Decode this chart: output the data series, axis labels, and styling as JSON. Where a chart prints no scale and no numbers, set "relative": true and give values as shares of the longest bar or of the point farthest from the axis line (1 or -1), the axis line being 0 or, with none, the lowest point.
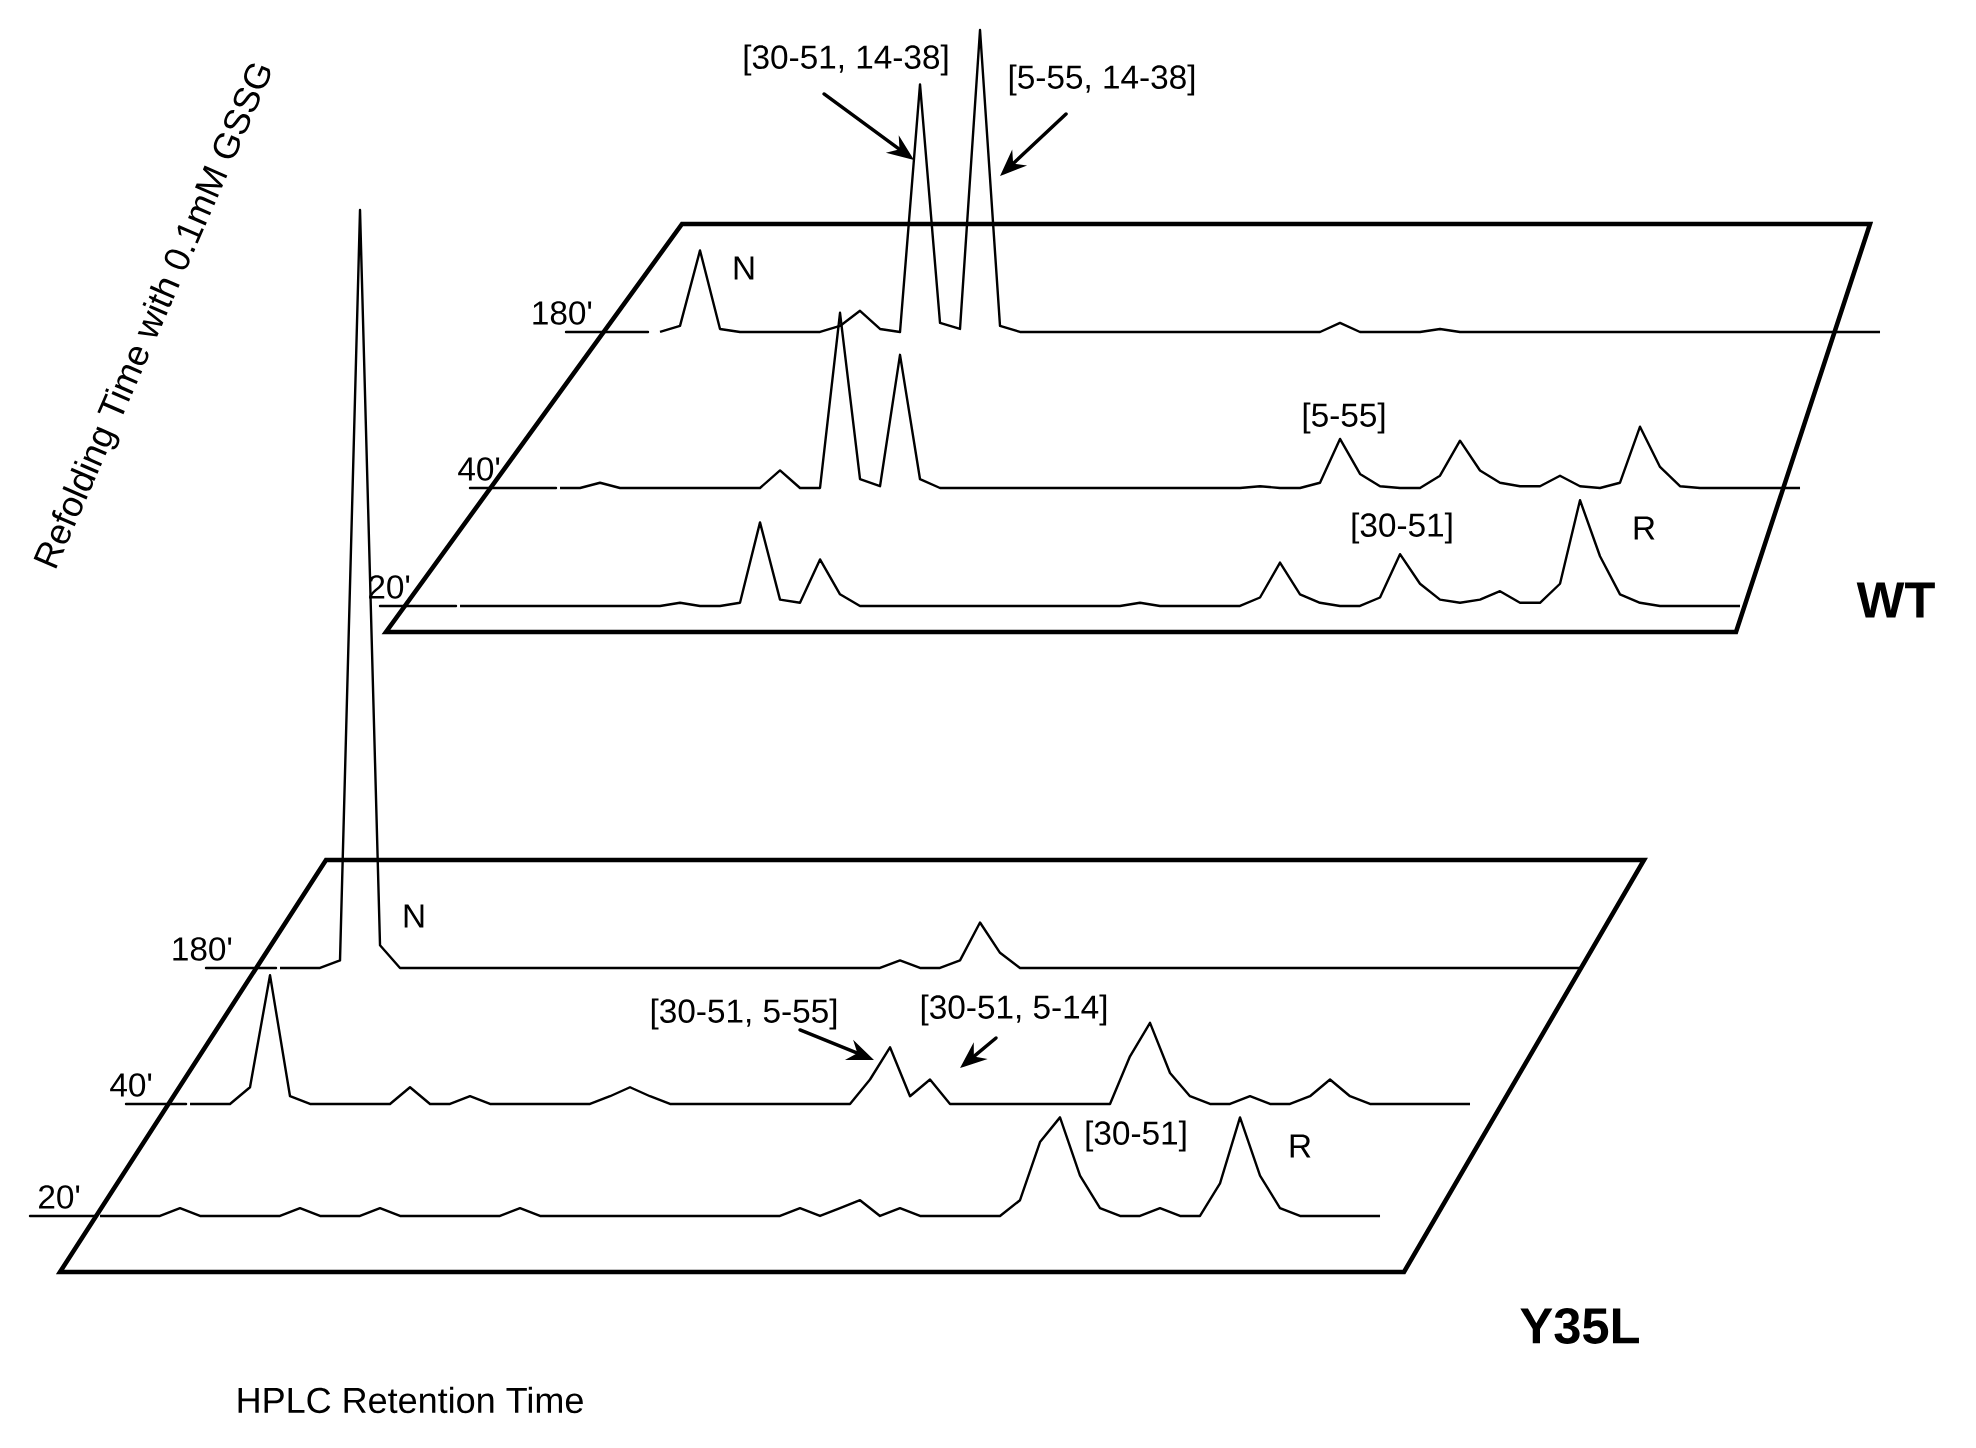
{
  "chart_data": [
    {
      "type": "line",
      "relative": true,
      "ylabel": "Refolding Time with 0.1mM GSSG",
      "categories": [
        null,
        null,
        null,
        null,
        null,
        null,
        null,
        null,
        null,
        null,
        null,
        null,
        null,
        null,
        null,
        null,
        null,
        null,
        null,
        null,
        null,
        null,
        null,
        null,
        null,
        null,
        null,
        null,
        null,
        null,
        null,
        null,
        null,
        null,
        null,
        null,
        null,
        null,
        null,
        null,
        null,
        null,
        null,
        null,
        null,
        null,
        null,
        null,
        null,
        null,
        null,
        null,
        null,
        null,
        null,
        null,
        null,
        null,
        null,
        null,
        null,
        null
      ],
      "series": [
        {
          "name": "180'",
          "color": "#000000",
          "values": [
            0,
            0.02,
            0.27,
            0.01,
            0,
            0,
            0,
            0,
            0,
            0.02,
            0.07,
            0.01,
            0,
            0.82,
            0.03,
            0.01,
            1,
            0.02,
            0,
            0,
            0,
            0,
            0,
            0,
            0,
            0,
            0,
            0,
            0,
            0,
            0,
            0,
            0,
            0,
            0.03,
            0,
            0,
            0,
            0,
            0.01,
            0,
            0,
            0,
            0,
            0,
            0,
            0,
            0,
            0,
            0,
            0,
            0,
            0,
            0,
            0,
            0,
            0,
            0,
            0,
            0,
            0,
            0
          ]
        }
      ],
      "annotations": [
        "[30-51, 14-38]",
        "[5-55, 14-38]",
        "N"
      ]
    },
    {
      "type": "line",
      "relative": true,
      "categories": [
        null,
        null,
        null,
        null,
        null,
        null,
        null,
        null,
        null,
        null,
        null,
        null,
        null,
        null,
        null,
        null,
        null,
        null,
        null,
        null,
        null,
        null,
        null,
        null,
        null,
        null,
        null,
        null,
        null,
        null,
        null,
        null,
        null,
        null,
        null,
        null,
        null,
        null,
        null,
        null,
        null,
        null,
        null,
        null,
        null,
        null,
        null,
        null,
        null,
        null,
        null,
        null,
        null,
        null,
        null,
        null,
        null,
        null,
        null,
        null,
        null,
        null,
        null
      ],
      "series": [
        {
          "name": "40'",
          "color": "#000000",
          "values": [
            0,
            0,
            0.03,
            0,
            0,
            0,
            0,
            0,
            0,
            0,
            0,
            0.1,
            0,
            0,
            1,
            0.05,
            0.01,
            0.76,
            0.05,
            0,
            0,
            0,
            0,
            0,
            0,
            0,
            0,
            0,
            0,
            0,
            0,
            0,
            0,
            0,
            0,
            0.01,
            0,
            0,
            0.03,
            0.28,
            0.08,
            0.01,
            0,
            0,
            0.07,
            0.27,
            0.1,
            0.03,
            0.01,
            0.01,
            0.07,
            0.01,
            0,
            0.03,
            0.35,
            0.12,
            0.01,
            0,
            0,
            0,
            0,
            0,
            0
          ]
        }
      ],
      "annotations": [
        "[5-55]"
      ]
    },
    {
      "type": "line",
      "relative": true,
      "categories": [
        null,
        null,
        null,
        null,
        null,
        null,
        null,
        null,
        null,
        null,
        null,
        null,
        null,
        null,
        null,
        null,
        null,
        null,
        null,
        null,
        null,
        null,
        null,
        null,
        null,
        null,
        null,
        null,
        null,
        null,
        null,
        null,
        null,
        null,
        null,
        null,
        null,
        null,
        null,
        null,
        null,
        null,
        null,
        null,
        null,
        null,
        null,
        null,
        null,
        null,
        null,
        null,
        null,
        null,
        null,
        null,
        null,
        null,
        null,
        null,
        null,
        null,
        null,
        null,
        null
      ],
      "series": [
        {
          "name": "20'",
          "color": "#000000",
          "values": [
            0,
            0,
            0,
            0,
            0,
            0,
            0,
            0,
            0,
            0,
            0,
            0.03,
            0,
            0,
            0.03,
            0.79,
            0.06,
            0.03,
            0.44,
            0.11,
            0,
            0,
            0,
            0,
            0,
            0,
            0,
            0,
            0,
            0,
            0,
            0,
            0,
            0,
            0.03,
            0,
            0,
            0,
            0,
            0,
            0.08,
            0.41,
            0.11,
            0.03,
            0,
            0,
            0.08,
            0.49,
            0.21,
            0.06,
            0.03,
            0.06,
            0.14,
            0.03,
            0.03,
            0.21,
            1,
            0.47,
            0.11,
            0.03,
            0,
            0,
            0,
            0,
            0
          ]
        }
      ],
      "annotations": [
        "[30-51]",
        "R",
        "WT"
      ]
    },
    {
      "type": "line",
      "relative": true,
      "categories": [
        null,
        null,
        null,
        null,
        null,
        null,
        null,
        null,
        null,
        null,
        null,
        null,
        null,
        null,
        null,
        null,
        null,
        null,
        null,
        null,
        null,
        null,
        null,
        null,
        null,
        null,
        null,
        null,
        null,
        null,
        null,
        null,
        null,
        null,
        null,
        null,
        null,
        null,
        null,
        null,
        null,
        null,
        null,
        null,
        null,
        null,
        null,
        null,
        null,
        null,
        null,
        null,
        null,
        null,
        null,
        null,
        null,
        null,
        null,
        null,
        null,
        null,
        null,
        null,
        null,
        null
      ],
      "series": [
        {
          "name": "180'",
          "color": "#000000",
          "values": [
            0,
            0,
            0,
            0.01,
            1,
            0.03,
            0,
            0,
            0,
            0,
            0,
            0,
            0,
            0,
            0,
            0,
            0,
            0,
            0,
            0,
            0,
            0,
            0,
            0,
            0,
            0,
            0,
            0,
            0,
            0,
            0,
            0.01,
            0,
            0,
            0.01,
            0.06,
            0.02,
            0,
            0,
            0,
            0,
            0,
            0,
            0,
            0,
            0,
            0,
            0,
            0,
            0,
            0,
            0,
            0,
            0,
            0,
            0,
            0,
            0,
            0,
            0,
            0,
            0,
            0,
            0,
            0,
            0
          ]
        }
      ],
      "annotations": [
        "N"
      ]
    },
    {
      "type": "line",
      "relative": true,
      "categories": [
        null,
        null,
        null,
        null,
        null,
        null,
        null,
        null,
        null,
        null,
        null,
        null,
        null,
        null,
        null,
        null,
        null,
        null,
        null,
        null,
        null,
        null,
        null,
        null,
        null,
        null,
        null,
        null,
        null,
        null,
        null,
        null,
        null,
        null,
        null,
        null,
        null,
        null,
        null,
        null,
        null,
        null,
        null,
        null,
        null,
        null,
        null,
        null,
        null,
        null,
        null,
        null,
        null,
        null,
        null,
        null,
        null,
        null,
        null,
        null,
        null,
        null,
        null,
        null,
        null
      ],
      "series": [
        {
          "name": "40'",
          "color": "#000000",
          "values": [
            0,
            0,
            0,
            0.13,
            1,
            0.06,
            0,
            0,
            0,
            0,
            0,
            0.13,
            0,
            0,
            0.06,
            0,
            0,
            0,
            0,
            0,
            0,
            0.06,
            0.13,
            0.06,
            0,
            0,
            0,
            0,
            0,
            0,
            0,
            0,
            0,
            0,
            0.19,
            0.44,
            0.06,
            0.19,
            0,
            0,
            0,
            0,
            0,
            0,
            0,
            0,
            0,
            0.37,
            0.63,
            0.24,
            0.06,
            0,
            0,
            0.06,
            0,
            0,
            0.06,
            0.19,
            0.06,
            0,
            0,
            0,
            0,
            0,
            0
          ]
        }
      ],
      "annotations": [
        "[30-51, 5-55]",
        "[30-51, 5-14]"
      ]
    },
    {
      "type": "line",
      "relative": true,
      "xlabel": "HPLC Retention Time",
      "categories": [
        null,
        null,
        null,
        null,
        null,
        null,
        null,
        null,
        null,
        null,
        null,
        null,
        null,
        null,
        null,
        null,
        null,
        null,
        null,
        null,
        null,
        null,
        null,
        null,
        null,
        null,
        null,
        null,
        null,
        null,
        null,
        null,
        null,
        null,
        null,
        null,
        null,
        null,
        null,
        null,
        null,
        null,
        null,
        null,
        null,
        null,
        null,
        null,
        null,
        null,
        null,
        null,
        null,
        null,
        null,
        null,
        null,
        null,
        null,
        null,
        null,
        null,
        null,
        null,
        null
      ],
      "series": [
        {
          "name": "20'",
          "color": "#000000",
          "values": [
            0,
            0,
            0,
            0,
            0.08,
            0,
            0,
            0,
            0,
            0,
            0.08,
            0,
            0,
            0,
            0.08,
            0,
            0,
            0,
            0,
            0,
            0,
            0.08,
            0,
            0,
            0,
            0,
            0,
            0,
            0,
            0,
            0,
            0,
            0,
            0,
            0,
            0.08,
            0,
            0.08,
            0.16,
            0,
            0.08,
            0,
            0,
            0,
            0,
            0,
            0.16,
            0.75,
            1,
            0.41,
            0.08,
            0,
            0,
            0.08,
            0,
            0,
            0.33,
            1,
            0.41,
            0.08,
            0,
            0,
            0,
            0,
            0
          ]
        }
      ],
      "annotations": [
        "[30-51]",
        "R",
        "Y35L"
      ]
    }
  ]
}
